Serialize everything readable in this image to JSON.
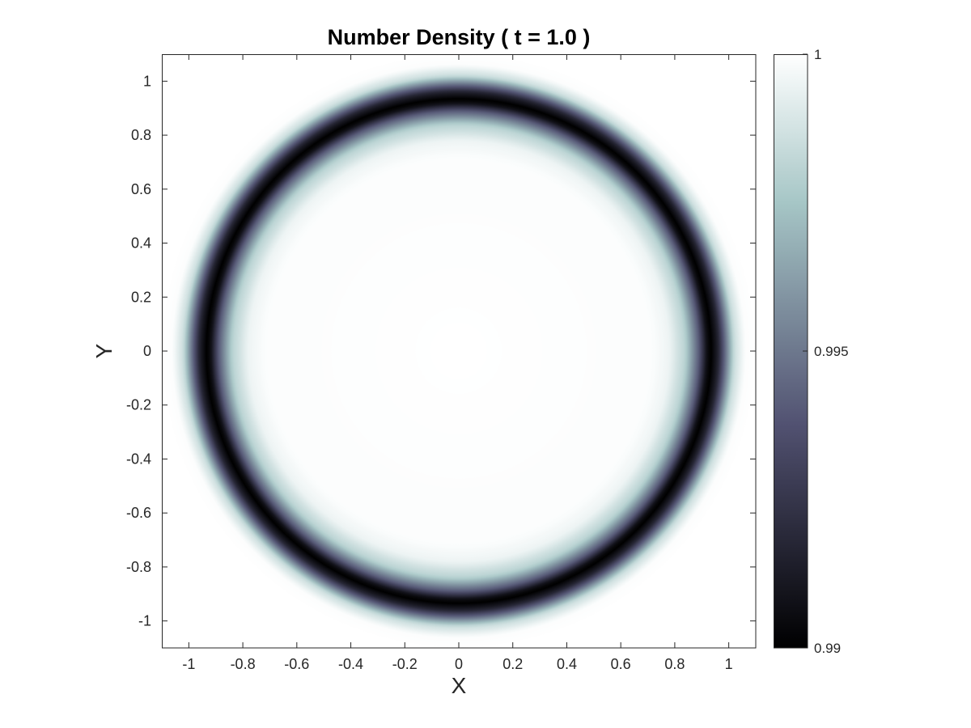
{
  "chart_data": {
    "type": "heatmap",
    "title": "Number Density ( t = 1.0 )",
    "xlabel": "X",
    "ylabel": "Y",
    "xlim": [
      -1.1,
      1.1
    ],
    "ylim": [
      -1.1,
      1.1
    ],
    "xticks": [
      -1,
      -0.8,
      -0.6,
      -0.4,
      -0.2,
      0,
      0.2,
      0.4,
      0.6,
      0.8,
      1
    ],
    "yticks": [
      -1,
      -0.8,
      -0.6,
      -0.4,
      -0.2,
      0,
      0.2,
      0.4,
      0.6,
      0.8,
      1
    ],
    "xtick_labels": [
      "-1",
      "-0.8",
      "-0.6",
      "-0.4",
      "-0.2",
      "0",
      "0.2",
      "0.4",
      "0.6",
      "0.8",
      "1"
    ],
    "ytick_labels": [
      "-1",
      "-0.8",
      "-0.6",
      "-0.4",
      "-0.2",
      "0",
      "0.2",
      "0.4",
      "0.6",
      "0.8",
      "1"
    ],
    "grid": false,
    "colormap": "bone",
    "colorbar": {
      "range": [
        0.99,
        1.0
      ],
      "ticks": [
        0.99,
        0.995,
        1.0
      ],
      "tick_labels": [
        "0.99",
        "0.995",
        "1"
      ],
      "position": "right"
    },
    "field": {
      "description_of_shape": "radially symmetric ring of reduced density",
      "radial_profile": [
        {
          "r": 0.0,
          "value": 1.0
        },
        {
          "r": 0.72,
          "value": 0.9999
        },
        {
          "r": 0.78,
          "value": 0.9995
        },
        {
          "r": 0.84,
          "value": 0.998
        },
        {
          "r": 0.89,
          "value": 0.994
        },
        {
          "r": 0.92,
          "value": 0.9905
        },
        {
          "r": 0.935,
          "value": 0.99
        },
        {
          "r": 0.96,
          "value": 0.9915
        },
        {
          "r": 0.99,
          "value": 0.995
        },
        {
          "r": 1.02,
          "value": 0.9985
        },
        {
          "r": 1.06,
          "value": 0.9999
        },
        {
          "r": 1.1,
          "value": 1.0
        }
      ]
    }
  }
}
